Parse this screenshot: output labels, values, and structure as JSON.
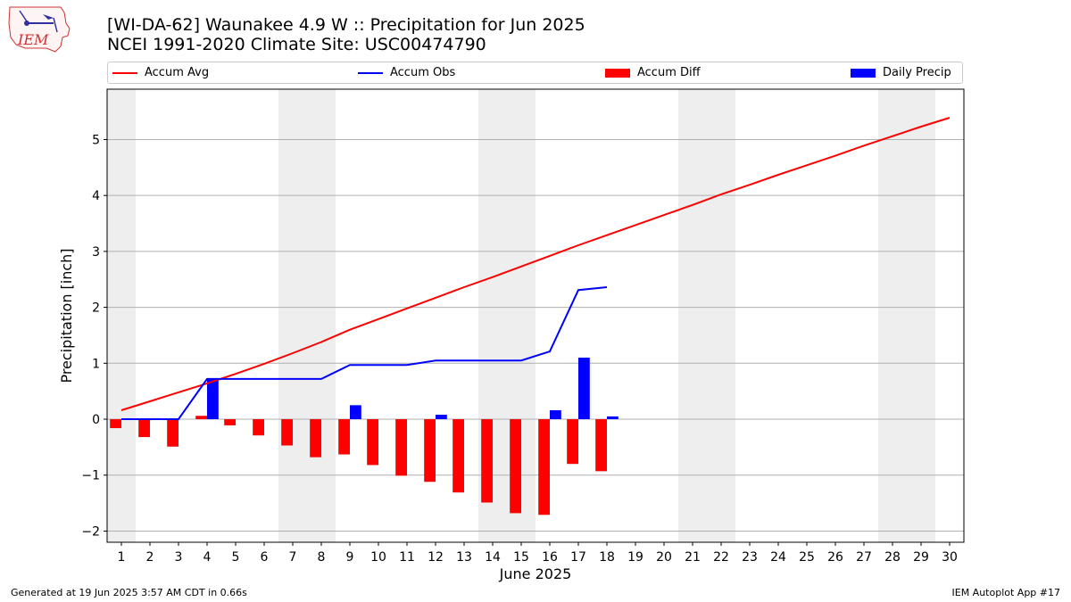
{
  "header": {
    "title_line1": "[WI-DA-62] Waunakee 4.9 W :: Precipitation for Jun 2025",
    "title_line2": "NCEI 1991-2020 Climate Site: USC00474790"
  },
  "logo": {
    "text": "IEM"
  },
  "footer": {
    "generated": "Generated at 19 Jun 2025 3:57 AM CDT in 0.66s",
    "app": "IEM Autoplot App #17"
  },
  "colors": {
    "red": "#ff0000",
    "blue": "#0000ff",
    "weekend": "#eeeeee",
    "grid": "#b0b0b0"
  },
  "chart_data": {
    "type": "bar",
    "xlabel": "June 2025",
    "ylabel": "Precipitation [inch]",
    "xlim": [
      0.5,
      30.5
    ],
    "ylim": [
      -2.2,
      5.9
    ],
    "yticks": [
      -2,
      -1,
      0,
      1,
      2,
      3,
      4,
      5
    ],
    "ytick_labels": [
      "−2",
      "−1",
      "0",
      "1",
      "2",
      "3",
      "4",
      "5"
    ],
    "grid": "y-axis",
    "legend_placement": "top, above plot",
    "weekend_bands": [
      [
        0.5,
        1.5
      ],
      [
        6.5,
        8.5
      ],
      [
        13.5,
        15.5
      ],
      [
        20.5,
        22.5
      ],
      [
        27.5,
        29.5
      ]
    ],
    "days": [
      1,
      2,
      3,
      4,
      5,
      6,
      7,
      8,
      9,
      10,
      11,
      12,
      13,
      14,
      15,
      16,
      17,
      18,
      19,
      20,
      21,
      22,
      23,
      24,
      25,
      26,
      27,
      28,
      29,
      30
    ],
    "series": [
      {
        "name": "Accum Avg",
        "kind": "line",
        "color": "#ff0000",
        "values": [
          0.16,
          0.32,
          0.48,
          0.64,
          0.81,
          0.99,
          1.18,
          1.38,
          1.6,
          1.79,
          1.98,
          2.17,
          2.36,
          2.54,
          2.73,
          2.92,
          3.11,
          3.29,
          3.47,
          3.65,
          3.83,
          4.02,
          4.19,
          4.37,
          4.54,
          4.71,
          4.89,
          5.06,
          5.23,
          5.39
        ]
      },
      {
        "name": "Accum Obs",
        "kind": "line",
        "color": "#0000ff",
        "values": [
          0.0,
          0.0,
          0.0,
          0.72,
          0.72,
          0.72,
          0.72,
          0.72,
          0.97,
          0.97,
          0.97,
          1.05,
          1.05,
          1.05,
          1.05,
          1.21,
          2.31,
          2.36
        ]
      },
      {
        "name": "Accum Diff",
        "kind": "bar",
        "color": "#ff0000",
        "values": [
          -0.16,
          -0.32,
          -0.49,
          0.06,
          -0.11,
          -0.29,
          -0.47,
          -0.68,
          -0.63,
          -0.82,
          -1.01,
          -1.12,
          -1.31,
          -1.49,
          -1.68,
          -1.71,
          -0.8,
          -0.93
        ]
      },
      {
        "name": "Daily Precip",
        "kind": "bar",
        "color": "#0000ff",
        "values": [
          0.0,
          0.0,
          0.0,
          0.72,
          0.0,
          0.0,
          0.0,
          0.0,
          0.25,
          0.0,
          0.0,
          0.08,
          0.0,
          0.0,
          0.0,
          0.16,
          1.1,
          0.05
        ]
      }
    ]
  }
}
